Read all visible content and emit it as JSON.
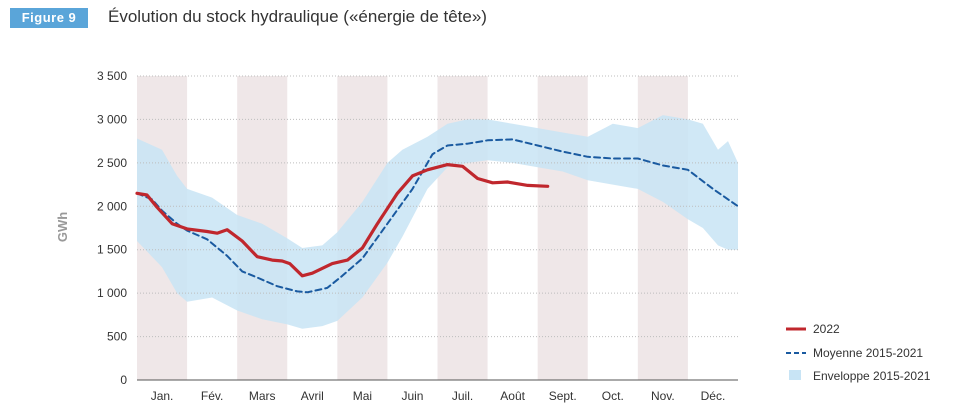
{
  "figure_label": "Figure 9",
  "title": "Évolution du stock hydraulique («énergie de tête»)",
  "colors": {
    "badge": "#5aa5d9",
    "series_2022": "#c0272d",
    "moyenne": "#1a5aa0",
    "envelope": "#c8e4f5",
    "stripe": "#efe7e8",
    "grid": "#bdbdbd"
  },
  "chart_data": {
    "type": "line",
    "ylabel": "GWh",
    "xlabel": "",
    "ylim": [
      0,
      3500
    ],
    "yticks": [
      0,
      500,
      1000,
      1500,
      2000,
      2500,
      3000,
      3500
    ],
    "ytick_labels": [
      "0",
      "500",
      "1 000",
      "1 500",
      "2 000",
      "2 500",
      "3 000",
      "3 500"
    ],
    "xlim": [
      0,
      12
    ],
    "months": [
      "Jan.",
      "Fév.",
      "Mars",
      "Avril",
      "Mai",
      "Juin",
      "Juil.",
      "Août",
      "Sept.",
      "Oct.",
      "Nov.",
      "Déc."
    ],
    "shaded_months": [
      0,
      2,
      4,
      6,
      8,
      10
    ],
    "grid": "horizontal dotted",
    "legend_position": "bottom-right",
    "series": [
      {
        "name": "2022",
        "style": "solid",
        "x": [
          0,
          0.2,
          0.4,
          0.7,
          1.0,
          1.4,
          1.6,
          1.8,
          2.1,
          2.4,
          2.7,
          2.9,
          3.05,
          3.3,
          3.5,
          3.9,
          4.2,
          4.5,
          4.8,
          5.2,
          5.5,
          5.8,
          6.2,
          6.5,
          6.8,
          7.1,
          7.4,
          7.8,
          8.2
        ],
        "values": [
          2150,
          2130,
          1990,
          1800,
          1740,
          1710,
          1690,
          1730,
          1600,
          1420,
          1380,
          1370,
          1340,
          1200,
          1230,
          1340,
          1380,
          1520,
          1800,
          2150,
          2350,
          2420,
          2480,
          2460,
          2320,
          2270,
          2280,
          2240,
          2230
        ]
      },
      {
        "name": "Moyenne 2015-2021",
        "style": "dashed",
        "x": [
          0,
          0.3,
          0.5,
          0.8,
          1.0,
          1.4,
          1.8,
          2.1,
          2.4,
          2.8,
          3.2,
          3.4,
          3.8,
          4.1,
          4.5,
          5.0,
          5.5,
          5.9,
          6.2,
          6.6,
          7.0,
          7.5,
          8.0,
          8.5,
          9.0,
          9.5,
          10.0,
          10.5,
          11.0,
          11.5,
          12.0
        ],
        "values": [
          2150,
          2080,
          1950,
          1800,
          1720,
          1620,
          1430,
          1250,
          1180,
          1080,
          1020,
          1010,
          1060,
          1200,
          1400,
          1800,
          2200,
          2600,
          2700,
          2720,
          2760,
          2770,
          2700,
          2630,
          2570,
          2550,
          2550,
          2470,
          2420,
          2200,
          2000
        ]
      }
    ],
    "envelope": {
      "name": "Enveloppe 2015-2021",
      "x": [
        0,
        0.5,
        0.8,
        1.0,
        1.5,
        2.0,
        2.5,
        3.0,
        3.3,
        3.7,
        4.0,
        4.5,
        5.0,
        5.3,
        5.8,
        6.2,
        6.6,
        7.0,
        7.5,
        8.0,
        8.5,
        9.0,
        9.5,
        10.0,
        10.5,
        11.0,
        11.3,
        11.6,
        11.8,
        12.0
      ],
      "upper": [
        2780,
        2650,
        2350,
        2200,
        2100,
        1900,
        1800,
        1630,
        1520,
        1550,
        1700,
        2050,
        2500,
        2650,
        2800,
        2950,
        3000,
        3000,
        2950,
        2900,
        2850,
        2800,
        2950,
        2900,
        3050,
        3000,
        2950,
        2650,
        2750,
        2500
      ],
      "lower": [
        1600,
        1300,
        1000,
        900,
        950,
        800,
        700,
        640,
        590,
        620,
        680,
        950,
        1350,
        1650,
        2200,
        2450,
        2500,
        2530,
        2500,
        2450,
        2400,
        2300,
        2250,
        2200,
        2050,
        1850,
        1750,
        1550,
        1500,
        1500
      ]
    }
  }
}
